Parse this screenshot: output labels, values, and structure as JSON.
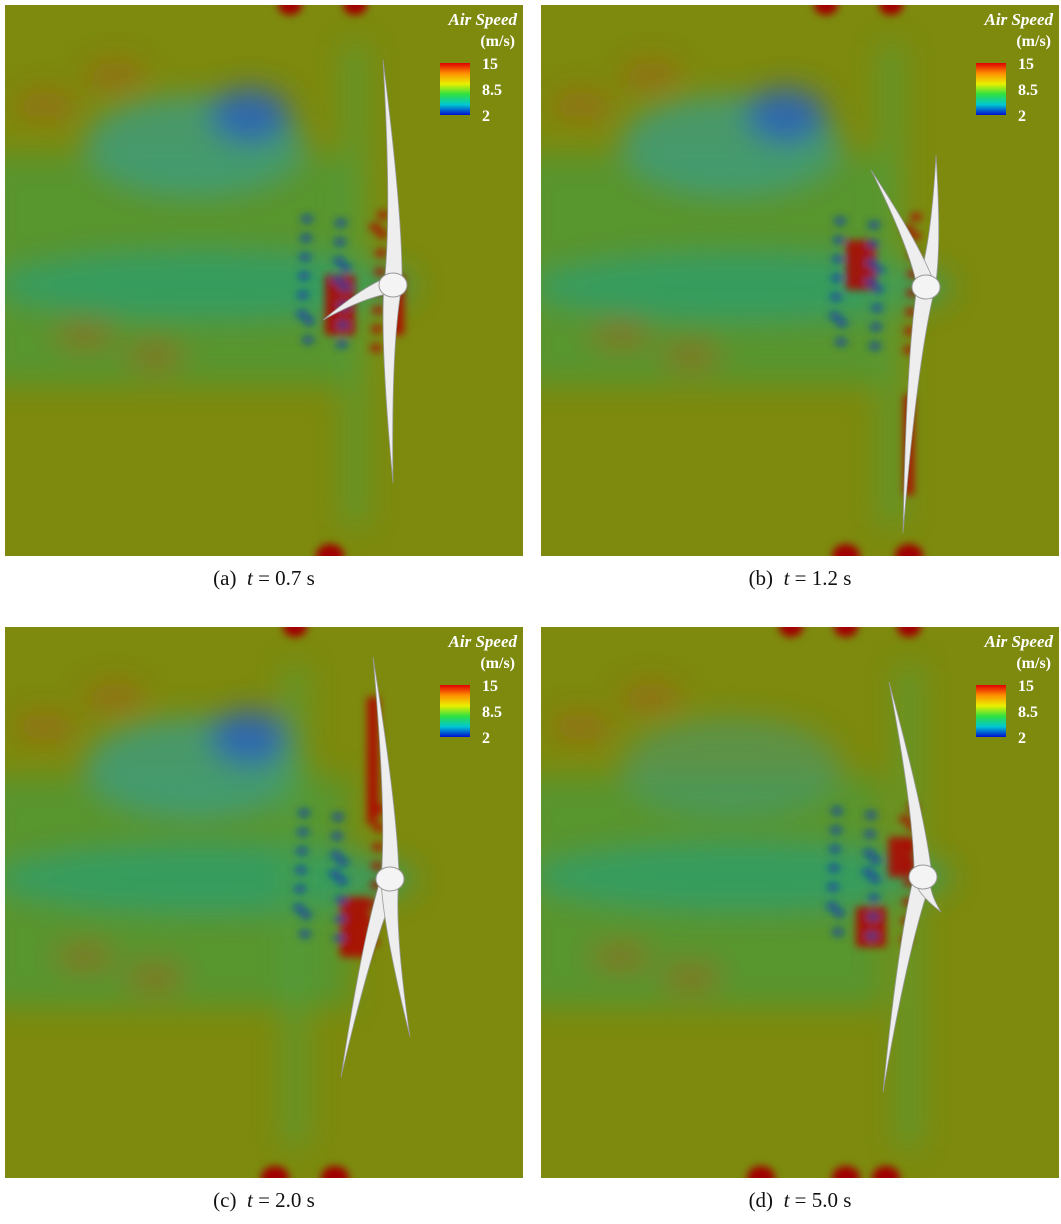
{
  "figure": {
    "panels": [
      {
        "label": "(a)",
        "symbol": "t",
        "time_text": "= 0.7 s"
      },
      {
        "label": "(b)",
        "symbol": "t",
        "time_text": "= 1.2 s"
      },
      {
        "label": "(c)",
        "symbol": "t",
        "time_text": "= 2.0 s"
      },
      {
        "label": "(d)",
        "symbol": "t",
        "time_text": "= 5.0 s"
      }
    ],
    "colorbar": {
      "title": "Air Speed",
      "unit": "(m/s)",
      "ticks": [
        15,
        8.5,
        2
      ]
    }
  }
}
